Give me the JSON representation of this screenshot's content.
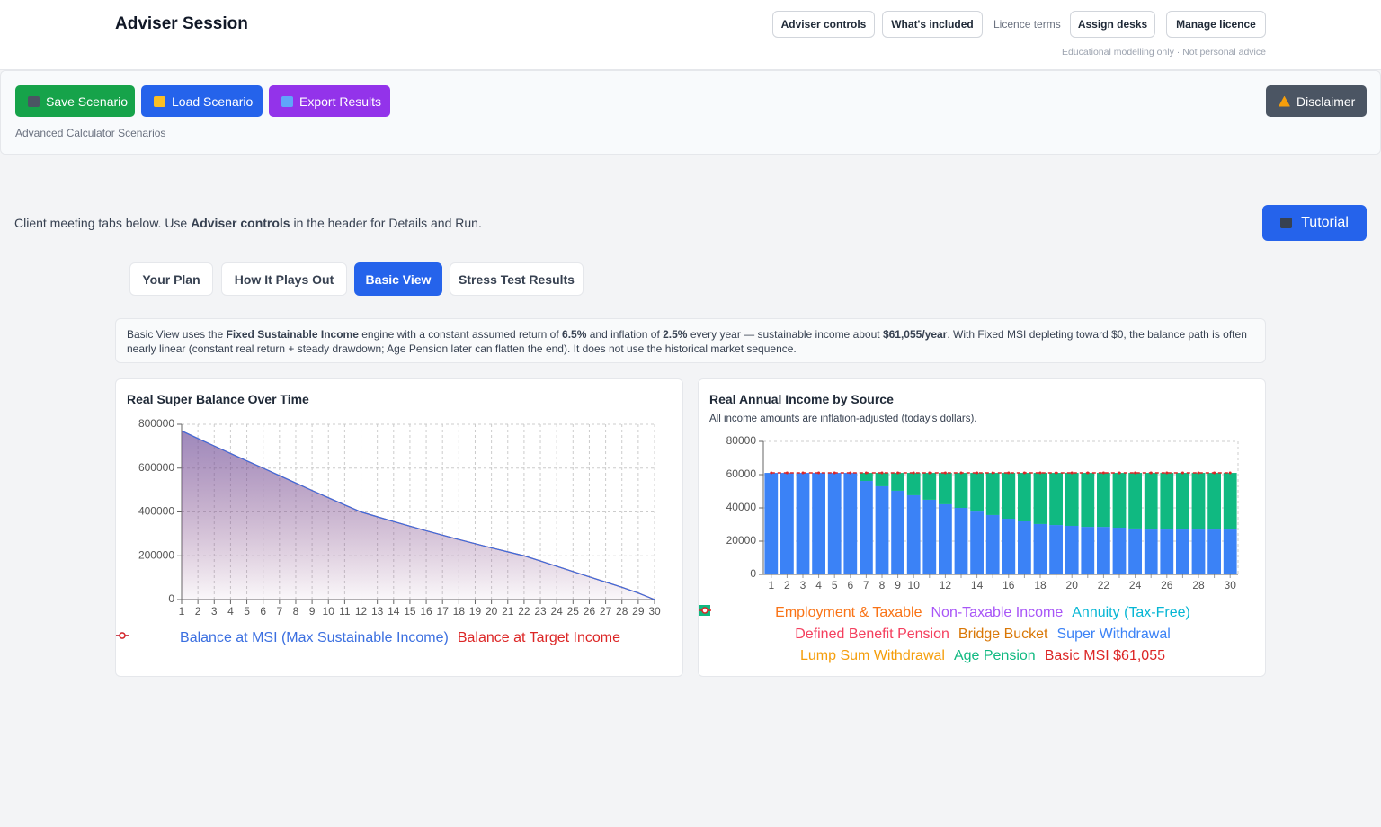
{
  "header": {
    "title": "Adviser Session",
    "buttons_left": [
      "Adviser controls",
      "What's included"
    ],
    "link": "Licence terms",
    "buttons_right": [
      "Assign desks",
      "Manage licence"
    ],
    "note": "Educational modelling only · Not personal advice"
  },
  "toolbar": {
    "buttons": [
      "Save Scenario",
      "Load Scenario",
      "Export Results"
    ],
    "caption": "Advanced Calculator Scenarios",
    "disclaimer": "Disclaimer"
  },
  "intro": {
    "before": "Client meeting tabs below. Use ",
    "strong": "Adviser controls",
    "after": " in the header for Details and Run."
  },
  "tutorial": "Tutorial",
  "tabs": {
    "items": [
      "Your Plan",
      "How It Plays Out",
      "Basic View",
      "Stress Test Results"
    ],
    "active": 2
  },
  "info": {
    "segments": [
      {
        "text": "Basic View uses the ",
        "strong": false
      },
      {
        "text": "Fixed Sustainable Income",
        "strong": true
      },
      {
        "text": " engine with a constant assumed return of ",
        "strong": false
      },
      {
        "text": "6.5%",
        "strong": true
      },
      {
        "text": " and inflation of ",
        "strong": false
      },
      {
        "text": "2.5%",
        "strong": true
      },
      {
        "text": " every year — sustainable income about ",
        "strong": false
      },
      {
        "text": "$61,055/year",
        "strong": true
      },
      {
        "text": ". With Fixed MSI depleting toward $0, the balance path is often nearly linear (constant real return + steady drawdown; Age Pension later can flatten the end). It does not use the historical market sequence.",
        "strong": false
      }
    ]
  },
  "chart_data": [
    {
      "type": "area",
      "title": "Real Super Balance Over Time",
      "x": [
        1,
        2,
        3,
        4,
        5,
        6,
        7,
        8,
        9,
        10,
        11,
        12,
        13,
        14,
        15,
        16,
        17,
        18,
        19,
        20,
        21,
        22,
        23,
        24,
        25,
        26,
        27,
        28,
        29,
        30
      ],
      "xlim": [
        1,
        30
      ],
      "xticks": [
        1,
        2,
        3,
        4,
        5,
        6,
        7,
        8,
        9,
        10,
        11,
        12,
        13,
        14,
        15,
        16,
        17,
        18,
        19,
        20,
        21,
        22,
        23,
        24,
        25,
        26,
        27,
        28,
        29,
        30
      ],
      "ylim": [
        0,
        800000
      ],
      "yticks": [
        0,
        200000,
        400000,
        600000,
        800000
      ],
      "grid": true,
      "series": [
        {
          "name": "Balance at MSI (Max Sustainable Income)",
          "color": "#3b6fe0",
          "values": [
            770000,
            735000,
            701000,
            667000,
            633000,
            600000,
            566000,
            532000,
            498000,
            465000,
            432000,
            400000,
            378000,
            356000,
            335000,
            314000,
            294000,
            274000,
            255000,
            236000,
            218000,
            200000,
            176000,
            152000,
            128000,
            104000,
            80000,
            56000,
            30000,
            0
          ]
        },
        {
          "name": "Balance at Target Income",
          "color": "#dc2626",
          "values": [
            770000,
            735000,
            701000,
            667000,
            633000,
            600000,
            566000,
            532000,
            498000,
            465000,
            432000,
            400000,
            378000,
            356000,
            335000,
            314000,
            294000,
            274000,
            255000,
            236000,
            218000,
            200000,
            176000,
            152000,
            128000,
            104000,
            80000,
            56000,
            30000,
            0
          ]
        }
      ]
    },
    {
      "type": "bar",
      "stacked": true,
      "title": "Real Annual Income by Source",
      "subtitle": "All income amounts are inflation-adjusted (today's dollars).",
      "categories": [
        "1",
        "2",
        "3",
        "4",
        "5",
        "6",
        "7",
        "8",
        "9",
        "10",
        null,
        "12",
        null,
        "14",
        null,
        "16",
        null,
        "18",
        null,
        "20",
        null,
        "22",
        null,
        "24",
        null,
        "26",
        null,
        "28",
        null,
        "30"
      ],
      "ylim": [
        0,
        80000
      ],
      "yticks": [
        0,
        20000,
        40000,
        60000,
        80000
      ],
      "grid": true,
      "series": [
        {
          "name": "Employment & Taxable",
          "color": "#f97316",
          "kind": "bar",
          "values": [
            0,
            0,
            0,
            0,
            0,
            0,
            0,
            0,
            0,
            0,
            0,
            0,
            0,
            0,
            0,
            0,
            0,
            0,
            0,
            0,
            0,
            0,
            0,
            0,
            0,
            0,
            0,
            0,
            0,
            0
          ]
        },
        {
          "name": "Non-Taxable Income",
          "color": "#a855f7",
          "kind": "bar",
          "values": [
            0,
            0,
            0,
            0,
            0,
            0,
            0,
            0,
            0,
            0,
            0,
            0,
            0,
            0,
            0,
            0,
            0,
            0,
            0,
            0,
            0,
            0,
            0,
            0,
            0,
            0,
            0,
            0,
            0,
            0
          ]
        },
        {
          "name": "Annuity (Tax-Free)",
          "color": "#06b6d4",
          "kind": "bar",
          "values": [
            0,
            0,
            0,
            0,
            0,
            0,
            0,
            0,
            0,
            0,
            0,
            0,
            0,
            0,
            0,
            0,
            0,
            0,
            0,
            0,
            0,
            0,
            0,
            0,
            0,
            0,
            0,
            0,
            0,
            0
          ]
        },
        {
          "name": "Defined Benefit Pension",
          "color": "#f43f5e",
          "kind": "bar",
          "values": [
            0,
            0,
            0,
            0,
            0,
            0,
            0,
            0,
            0,
            0,
            0,
            0,
            0,
            0,
            0,
            0,
            0,
            0,
            0,
            0,
            0,
            0,
            0,
            0,
            0,
            0,
            0,
            0,
            0,
            0
          ]
        },
        {
          "name": "Bridge Bucket",
          "color": "#d97706",
          "kind": "bar",
          "values": [
            0,
            0,
            0,
            0,
            0,
            0,
            0,
            0,
            0,
            0,
            0,
            0,
            0,
            0,
            0,
            0,
            0,
            0,
            0,
            0,
            0,
            0,
            0,
            0,
            0,
            0,
            0,
            0,
            0,
            0
          ]
        },
        {
          "name": "Super Withdrawal",
          "color": "#3b82f6",
          "kind": "bar",
          "values": [
            61055,
            61055,
            61055,
            61055,
            61055,
            61055,
            56200,
            53000,
            50300,
            47600,
            44900,
            42200,
            40000,
            37800,
            35700,
            33500,
            31900,
            30300,
            29700,
            29200,
            28600,
            28600,
            28100,
            27600,
            27000,
            27000,
            27000,
            27000,
            27000,
            27000
          ]
        },
        {
          "name": "Lump Sum Withdrawal",
          "color": "#f59e0b",
          "kind": "bar",
          "values": [
            0,
            0,
            0,
            0,
            0,
            0,
            0,
            0,
            0,
            0,
            0,
            0,
            0,
            0,
            0,
            0,
            0,
            0,
            0,
            0,
            0,
            0,
            0,
            0,
            0,
            0,
            0,
            0,
            0,
            0
          ]
        },
        {
          "name": "Age Pension",
          "color": "#10b981",
          "kind": "bar",
          "values": [
            0,
            0,
            0,
            0,
            0,
            0,
            4855,
            8055,
            10755,
            13455,
            16155,
            18855,
            21055,
            23255,
            25355,
            27555,
            29155,
            30755,
            31355,
            31855,
            32455,
            32455,
            32955,
            33455,
            34055,
            34055,
            34055,
            34055,
            34055,
            34055
          ]
        },
        {
          "name": "Basic MSI $61,055",
          "color": "#dc2626",
          "kind": "line",
          "values": [
            61055,
            61055,
            61055,
            61055,
            61055,
            61055,
            61055,
            61055,
            61055,
            61055,
            61055,
            61055,
            61055,
            61055,
            61055,
            61055,
            61055,
            61055,
            61055,
            61055,
            61055,
            61055,
            61055,
            61055,
            61055,
            61055,
            61055,
            61055,
            61055,
            61055
          ]
        }
      ]
    }
  ]
}
